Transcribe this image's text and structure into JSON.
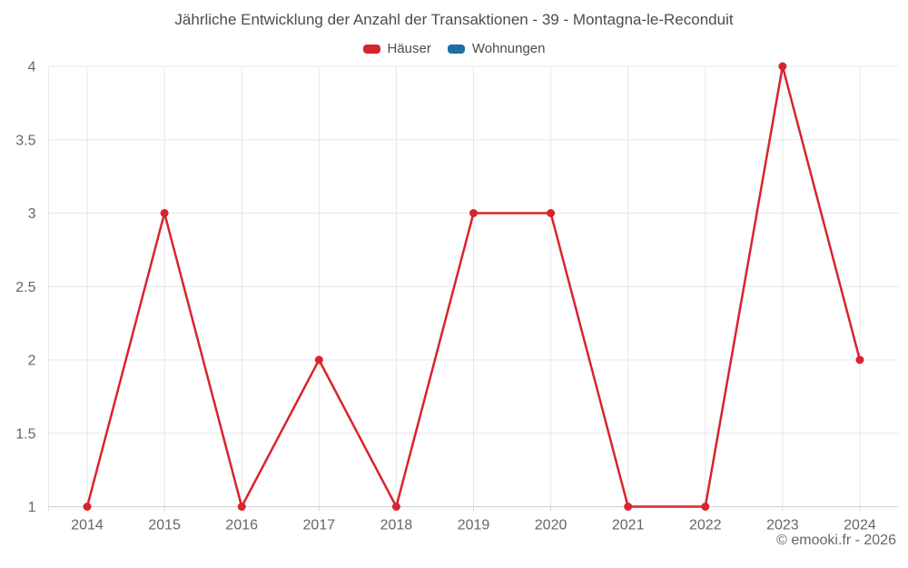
{
  "header": {
    "title": "Jährliche Entwicklung der Anzahl der Transaktionen - 39 - Montagna-le-Reconduit"
  },
  "chart_data": {
    "type": "line",
    "title": "Jährliche Entwicklung der Anzahl der Transaktionen - 39 - Montagna-le-Reconduit",
    "categories": [
      "2014",
      "2015",
      "2016",
      "2017",
      "2018",
      "2019",
      "2020",
      "2021",
      "2022",
      "2023",
      "2024"
    ],
    "series": [
      {
        "name": "Häuser",
        "color": "#d9232e",
        "values": [
          1,
          3,
          1,
          2,
          1,
          3,
          3,
          1,
          1,
          4,
          2
        ]
      },
      {
        "name": "Wohnungen",
        "color": "#1c6ea4",
        "values": []
      }
    ],
    "xlabel": "",
    "ylabel": "",
    "ylim": [
      1,
      4
    ],
    "yticks": [
      1,
      1.5,
      2,
      2.5,
      3,
      3.5,
      4
    ],
    "grid": true,
    "legend_position": "top",
    "marker": "circle"
  },
  "styles": {
    "grid_color": "#e7e7e7",
    "axis_color": "#d3d3d3",
    "tick_label_color": "#666666",
    "title_color": "#4c4c4c",
    "line_width": 2.5,
    "marker_radius": 4.5
  },
  "footer": {
    "credit": "© emooki.fr - 2026"
  }
}
